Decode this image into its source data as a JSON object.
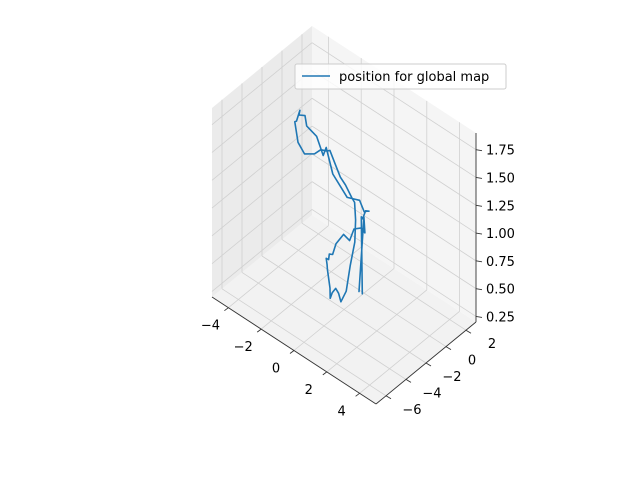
{
  "chart_data": {
    "type": "line",
    "projection": "3d",
    "title": "",
    "xlabel": "",
    "ylabel": "",
    "zlabel": "",
    "legend": {
      "placement": "top-right",
      "entries": [
        "position for global map"
      ]
    },
    "grid": true,
    "color": "#1f77b4",
    "xlim": [
      -5,
      5
    ],
    "ylim": [
      -7,
      3
    ],
    "zlim": [
      0.2,
      1.9
    ],
    "x_ticks": [
      "−4",
      "−2",
      "0",
      "2",
      "4"
    ],
    "x_tick_values": [
      -4,
      -2,
      0,
      2,
      4
    ],
    "y_ticks": [
      "−6",
      "−4",
      "−2",
      "0",
      "2"
    ],
    "y_tick_values": [
      -6,
      -4,
      -2,
      0,
      2
    ],
    "z_ticks": [
      "0.25",
      "0.50",
      "0.75",
      "1.00",
      "1.25",
      "1.50",
      "1.75"
    ],
    "z_tick_values": [
      0.25,
      0.5,
      0.75,
      1.0,
      1.25,
      1.5,
      1.75
    ],
    "series": [
      {
        "name": "position for global map",
        "x": [
          0.2,
          0.2,
          0.1,
          0.1,
          0.0,
          -0.3,
          -0.6,
          -1.0,
          -1.5,
          -2.0,
          -2.5,
          -3.0,
          -3.4,
          -3.4,
          -3.5,
          -3.8,
          -3.6,
          -3.6,
          -3.3,
          -3.2,
          -3.0,
          -2.5,
          -1.8,
          -1.0,
          -0.5,
          0.0,
          0.3,
          0.8,
          1.3,
          1.8,
          2.3,
          2.6,
          2.9,
          3.1,
          3.0,
          3.0,
          2.8,
          2.6,
          2.3,
          1.9,
          1.6,
          1.4,
          1.0,
          0.8,
          0.5,
          0.4,
          0.2,
          0.1,
          0.0,
          0.1,
          0.1,
          0.0,
          0.2,
          0.3,
          0.3,
          0.0
        ],
        "y": [
          -0.5,
          -0.6,
          -0.3,
          0.0,
          0.5,
          0.8,
          1.0,
          1.2,
          1.4,
          1.6,
          1.7,
          1.8,
          1.8,
          1.5,
          1.0,
          0.5,
          0.0,
          -0.6,
          -1.0,
          -1.5,
          -2.0,
          -2.5,
          -3.0,
          -3.3,
          -3.5,
          -3.7,
          -3.9,
          -4.2,
          -4.5,
          -4.8,
          -5.0,
          -5.2,
          -5.6,
          -6.0,
          -6.3,
          -6.7,
          -6.9,
          -6.8,
          -6.6,
          -6.3,
          -6.0,
          -5.7,
          -5.3,
          -5.0,
          -4.6,
          -4.2,
          -3.8,
          -3.3,
          -2.8,
          -2.2,
          -1.6,
          -1.0,
          -0.6,
          -0.4,
          -0.5,
          -0.5
        ],
        "z": [
          0.25,
          0.95,
          0.9,
          0.95,
          0.9,
          0.85,
          0.8,
          0.85,
          0.8,
          0.75,
          0.8,
          0.85,
          1.05,
          1.0,
          1.2,
          1.3,
          1.45,
          1.5,
          1.6,
          1.55,
          1.6,
          1.5,
          1.5,
          1.6,
          1.7,
          1.75,
          1.8,
          1.75,
          1.7,
          1.7,
          1.65,
          1.65,
          1.55,
          1.4,
          1.2,
          1.0,
          0.9,
          0.95,
          0.95,
          0.85,
          0.75,
          0.8,
          0.9,
          0.9,
          0.9,
          0.85,
          0.85,
          0.8,
          0.85,
          0.9,
          0.8,
          0.85,
          0.85,
          0.8,
          0.95,
          0.25
        ]
      }
    ]
  }
}
